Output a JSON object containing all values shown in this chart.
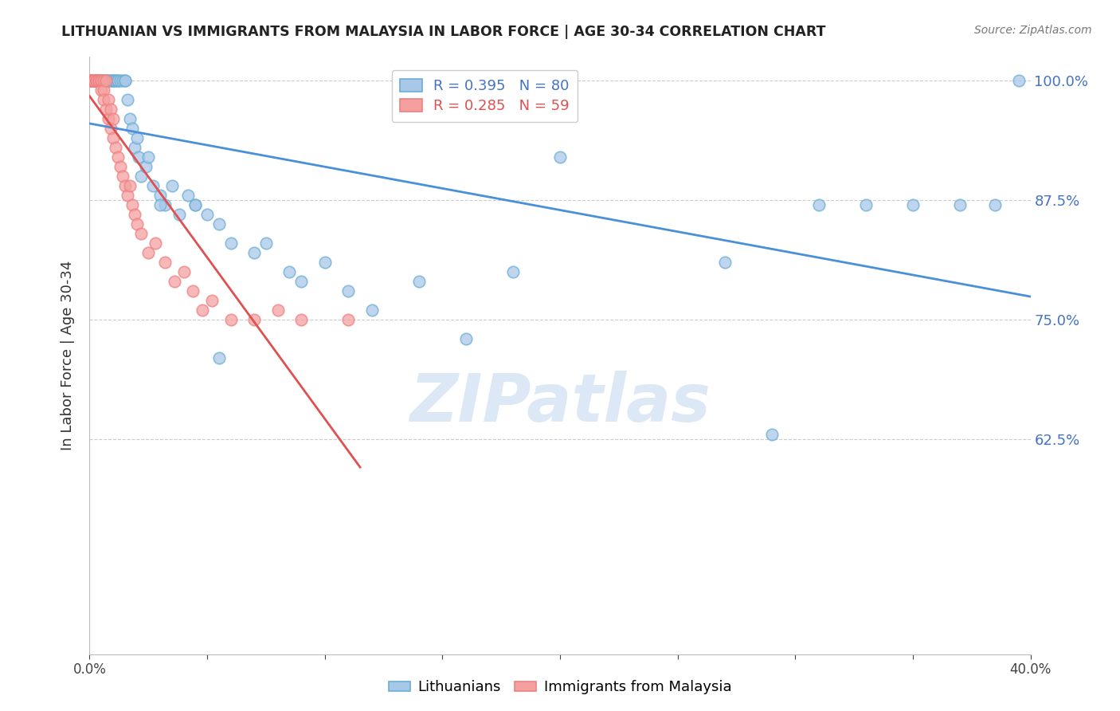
{
  "title": "LITHUANIAN VS IMMIGRANTS FROM MALAYSIA IN LABOR FORCE | AGE 30-34 CORRELATION CHART",
  "source": "Source: ZipAtlas.com",
  "ylabel": "In Labor Force | Age 30-34",
  "xlim": [
    0.0,
    0.4
  ],
  "ylim": [
    0.4,
    1.025
  ],
  "yticks": [
    0.625,
    0.75,
    0.875,
    1.0
  ],
  "ytick_labels": [
    "62.5%",
    "75.0%",
    "87.5%",
    "100.0%"
  ],
  "xticks": [
    0.0,
    0.05,
    0.1,
    0.15,
    0.2,
    0.25,
    0.3,
    0.35,
    0.4
  ],
  "xtick_labels": [
    "0.0%",
    "",
    "",
    "",
    "",
    "",
    "",
    "",
    "40.0%"
  ],
  "blue_R": 0.395,
  "blue_N": 80,
  "pink_R": 0.285,
  "pink_N": 59,
  "blue_color": "#a8c8e8",
  "pink_color": "#f4a0a0",
  "blue_edge_color": "#6baed6",
  "pink_edge_color": "#f08080",
  "blue_line_color": "#4a90d9",
  "pink_line_color": "#e05050",
  "watermark": "ZIPatlas",
  "watermark_color": "#dce8f5",
  "legend_blue": "Lithuanians",
  "legend_pink": "Immigrants from Malaysia",
  "blue_x": [
    0.001,
    0.001,
    0.001,
    0.001,
    0.001,
    0.001,
    0.001,
    0.002,
    0.002,
    0.002,
    0.002,
    0.003,
    0.003,
    0.003,
    0.004,
    0.004,
    0.004,
    0.005,
    0.005,
    0.005,
    0.006,
    0.006,
    0.007,
    0.007,
    0.007,
    0.008,
    0.008,
    0.009,
    0.009,
    0.01,
    0.01,
    0.011,
    0.011,
    0.012,
    0.012,
    0.013,
    0.014,
    0.015,
    0.015,
    0.016,
    0.017,
    0.018,
    0.019,
    0.02,
    0.021,
    0.022,
    0.024,
    0.025,
    0.027,
    0.03,
    0.032,
    0.035,
    0.038,
    0.042,
    0.045,
    0.05,
    0.055,
    0.06,
    0.07,
    0.075,
    0.085,
    0.09,
    0.1,
    0.11,
    0.12,
    0.14,
    0.16,
    0.18,
    0.29,
    0.31,
    0.33,
    0.35,
    0.37,
    0.385,
    0.395,
    0.03,
    0.045,
    0.055,
    0.2,
    0.27
  ],
  "blue_y": [
    1.0,
    1.0,
    1.0,
    1.0,
    1.0,
    1.0,
    1.0,
    1.0,
    1.0,
    1.0,
    1.0,
    1.0,
    1.0,
    1.0,
    1.0,
    1.0,
    1.0,
    1.0,
    1.0,
    1.0,
    1.0,
    1.0,
    1.0,
    1.0,
    1.0,
    1.0,
    1.0,
    1.0,
    1.0,
    1.0,
    1.0,
    1.0,
    1.0,
    1.0,
    1.0,
    1.0,
    1.0,
    1.0,
    1.0,
    0.98,
    0.96,
    0.95,
    0.93,
    0.94,
    0.92,
    0.9,
    0.91,
    0.92,
    0.89,
    0.88,
    0.87,
    0.89,
    0.86,
    0.88,
    0.87,
    0.86,
    0.85,
    0.83,
    0.82,
    0.83,
    0.8,
    0.79,
    0.81,
    0.78,
    0.76,
    0.79,
    0.73,
    0.8,
    0.63,
    0.87,
    0.87,
    0.87,
    0.87,
    0.87,
    1.0,
    0.87,
    0.87,
    0.71,
    0.92,
    0.81
  ],
  "pink_x": [
    0.001,
    0.001,
    0.001,
    0.001,
    0.001,
    0.001,
    0.001,
    0.001,
    0.001,
    0.002,
    0.002,
    0.002,
    0.002,
    0.002,
    0.003,
    0.003,
    0.003,
    0.003,
    0.004,
    0.004,
    0.004,
    0.005,
    0.005,
    0.005,
    0.006,
    0.006,
    0.006,
    0.007,
    0.007,
    0.008,
    0.008,
    0.009,
    0.009,
    0.01,
    0.01,
    0.011,
    0.012,
    0.013,
    0.014,
    0.015,
    0.016,
    0.017,
    0.018,
    0.019,
    0.02,
    0.022,
    0.025,
    0.028,
    0.032,
    0.036,
    0.04,
    0.044,
    0.048,
    0.052,
    0.06,
    0.07,
    0.08,
    0.09,
    0.11
  ],
  "pink_y": [
    1.0,
    1.0,
    1.0,
    1.0,
    1.0,
    1.0,
    1.0,
    1.0,
    1.0,
    1.0,
    1.0,
    1.0,
    1.0,
    1.0,
    1.0,
    1.0,
    1.0,
    1.0,
    1.0,
    1.0,
    1.0,
    1.0,
    1.0,
    0.99,
    1.0,
    0.99,
    0.98,
    1.0,
    0.97,
    0.98,
    0.96,
    0.97,
    0.95,
    0.96,
    0.94,
    0.93,
    0.92,
    0.91,
    0.9,
    0.89,
    0.88,
    0.89,
    0.87,
    0.86,
    0.85,
    0.84,
    0.82,
    0.83,
    0.81,
    0.79,
    0.8,
    0.78,
    0.76,
    0.77,
    0.75,
    0.75,
    0.76,
    0.75,
    0.75
  ]
}
